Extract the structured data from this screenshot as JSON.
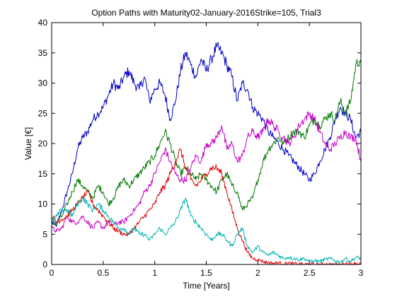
{
  "chart_data": {
    "type": "line",
    "title": "Option Paths with Maturity02-January-2016Strike=105, Trial3",
    "xlabel": "Time [Years]",
    "ylabel": "Value [€]",
    "xlim": [
      0,
      3
    ],
    "ylim": [
      0,
      40
    ],
    "xticks": [
      "0",
      "0.5",
      "1",
      "1.5",
      "2",
      "2.5",
      "3"
    ],
    "yticks": [
      "0",
      "5",
      "10",
      "15",
      "20",
      "25",
      "30",
      "35",
      "40"
    ],
    "grid": false,
    "legend": "none",
    "series": [
      {
        "color": "#0000c8",
        "x": [
          0,
          0.05,
          0.1,
          0.15,
          0.2,
          0.25,
          0.3,
          0.35,
          0.4,
          0.45,
          0.5,
          0.55,
          0.6,
          0.65,
          0.7,
          0.75,
          0.8,
          0.85,
          0.9,
          0.95,
          1.0,
          1.05,
          1.1,
          1.15,
          1.2,
          1.25,
          1.3,
          1.35,
          1.4,
          1.45,
          1.5,
          1.55,
          1.6,
          1.65,
          1.7,
          1.75,
          1.8,
          1.85,
          1.9,
          1.95,
          2.0,
          2.05,
          2.1,
          2.15,
          2.2,
          2.25,
          2.3,
          2.35,
          2.4,
          2.45,
          2.5,
          2.55,
          2.6,
          2.65,
          2.7,
          2.75,
          2.8,
          2.85,
          2.9,
          2.95,
          3.0
        ],
        "y": [
          7,
          6.5,
          9,
          12,
          15,
          19,
          21,
          22,
          24,
          25,
          26,
          28,
          30,
          29,
          31,
          32,
          30,
          29,
          31,
          27,
          29,
          30,
          28,
          24,
          27,
          32,
          35,
          33,
          31,
          34,
          32,
          34,
          36,
          35,
          33,
          31,
          27,
          30,
          29,
          26,
          25,
          24,
          22,
          21,
          20,
          19,
          18,
          17,
          16,
          15,
          14,
          15,
          17,
          19,
          21,
          24,
          26,
          25,
          24,
          21,
          22
        ]
      },
      {
        "color": "#007800",
        "x": [
          0,
          0.05,
          0.1,
          0.15,
          0.2,
          0.25,
          0.3,
          0.35,
          0.4,
          0.45,
          0.5,
          0.55,
          0.6,
          0.65,
          0.7,
          0.75,
          0.8,
          0.85,
          0.9,
          0.95,
          1.0,
          1.05,
          1.1,
          1.15,
          1.2,
          1.25,
          1.3,
          1.35,
          1.4,
          1.45,
          1.5,
          1.55,
          1.6,
          1.65,
          1.7,
          1.75,
          1.8,
          1.85,
          1.9,
          1.95,
          2.0,
          2.05,
          2.1,
          2.15,
          2.2,
          2.25,
          2.3,
          2.35,
          2.4,
          2.45,
          2.5,
          2.55,
          2.6,
          2.65,
          2.7,
          2.75,
          2.8,
          2.85,
          2.9,
          2.95,
          3.0
        ],
        "y": [
          6.5,
          7,
          8,
          10,
          12,
          14,
          13,
          12,
          11,
          13,
          12,
          10,
          11,
          13,
          14,
          13,
          14,
          15,
          16,
          17,
          18,
          20,
          22,
          20,
          17,
          15,
          16,
          15,
          14,
          15,
          14,
          13,
          12,
          14,
          15,
          13,
          12,
          9,
          10,
          11,
          14,
          17,
          19,
          20,
          21,
          20,
          21,
          22,
          22,
          21,
          23,
          24,
          23,
          24,
          25,
          24,
          27,
          25,
          27,
          33,
          34
        ]
      },
      {
        "color": "#c800c8",
        "x": [
          0,
          0.05,
          0.1,
          0.15,
          0.2,
          0.25,
          0.3,
          0.35,
          0.4,
          0.45,
          0.5,
          0.55,
          0.6,
          0.65,
          0.7,
          0.75,
          0.8,
          0.85,
          0.9,
          0.95,
          1.0,
          1.05,
          1.1,
          1.15,
          1.2,
          1.25,
          1.3,
          1.35,
          1.4,
          1.45,
          1.5,
          1.55,
          1.6,
          1.65,
          1.7,
          1.75,
          1.8,
          1.85,
          1.9,
          1.95,
          2.0,
          2.05,
          2.1,
          2.15,
          2.2,
          2.25,
          2.3,
          2.35,
          2.4,
          2.45,
          2.5,
          2.55,
          2.6,
          2.65,
          2.7,
          2.75,
          2.8,
          2.85,
          2.9,
          2.95,
          3.0
        ],
        "y": [
          6,
          5.5,
          6,
          8,
          7,
          7,
          8,
          7,
          6,
          7,
          6,
          7,
          6.5,
          7,
          7,
          8,
          9,
          10,
          12,
          13,
          15,
          17,
          19,
          17,
          15,
          14,
          14,
          16,
          18,
          17,
          20,
          20,
          21,
          23,
          19,
          20,
          17,
          18,
          21,
          22,
          21,
          22,
          24,
          23,
          22,
          21,
          20,
          21,
          23,
          24,
          25,
          24,
          22,
          20,
          19,
          20,
          21,
          22,
          21,
          21,
          17
        ]
      },
      {
        "color": "#e00000",
        "x": [
          0,
          0.05,
          0.1,
          0.15,
          0.2,
          0.25,
          0.3,
          0.35,
          0.4,
          0.45,
          0.5,
          0.55,
          0.6,
          0.65,
          0.7,
          0.75,
          0.8,
          0.85,
          0.9,
          0.95,
          1.0,
          1.05,
          1.1,
          1.15,
          1.2,
          1.25,
          1.3,
          1.35,
          1.4,
          1.45,
          1.5,
          1.55,
          1.6,
          1.65,
          1.7,
          1.75,
          1.8,
          1.85,
          1.9,
          1.95,
          2.0,
          2.05,
          2.1,
          2.15,
          2.2,
          2.25,
          2.3,
          2.35,
          2.4,
          2.45,
          2.5,
          2.55,
          2.6,
          2.65,
          2.7,
          2.75,
          2.8,
          2.85,
          2.9,
          2.95,
          3.0
        ],
        "y": [
          8,
          7,
          7.5,
          8,
          9,
          10,
          11,
          12,
          10,
          9,
          8,
          7,
          6,
          5.5,
          5,
          5,
          6,
          7,
          8,
          9,
          10,
          12,
          13,
          15,
          17,
          19,
          16,
          14,
          13,
          14,
          15,
          16,
          16,
          15,
          12,
          9,
          6,
          4,
          2,
          1,
          0.8,
          0.5,
          0.3,
          0.2,
          0.3,
          0.1,
          0.2,
          0.1,
          0.1,
          0,
          0.1,
          0,
          0,
          0.1,
          0,
          0,
          0,
          0.2,
          0.1,
          0.2,
          0.1
        ]
      },
      {
        "color": "#00b4b4",
        "x": [
          0,
          0.05,
          0.1,
          0.15,
          0.2,
          0.25,
          0.3,
          0.35,
          0.4,
          0.45,
          0.5,
          0.55,
          0.6,
          0.65,
          0.7,
          0.75,
          0.8,
          0.85,
          0.9,
          0.95,
          1.0,
          1.05,
          1.1,
          1.15,
          1.2,
          1.25,
          1.3,
          1.35,
          1.4,
          1.45,
          1.5,
          1.55,
          1.6,
          1.65,
          1.7,
          1.75,
          1.8,
          1.85,
          1.9,
          1.95,
          2.0,
          2.05,
          2.1,
          2.15,
          2.2,
          2.25,
          2.3,
          2.35,
          2.4,
          2.45,
          2.5,
          2.55,
          2.6,
          2.65,
          2.7,
          2.75,
          2.8,
          2.85,
          2.9,
          2.95,
          3.0
        ],
        "y": [
          7,
          8,
          9,
          9,
          8,
          10,
          11,
          10,
          9,
          10,
          9,
          8,
          7,
          6,
          6,
          5,
          6,
          5,
          5,
          4,
          5,
          6,
          5,
          6,
          7,
          9,
          11,
          8,
          7,
          6,
          5,
          4,
          5,
          5,
          4,
          3,
          5,
          6,
          3,
          2,
          3,
          2,
          1.5,
          2,
          1.5,
          1,
          1.2,
          1,
          0.8,
          1,
          0.5,
          0.6,
          0.5,
          0.8,
          1,
          0.6,
          0.4,
          1,
          0.5,
          1.2,
          1
        ]
      }
    ]
  }
}
